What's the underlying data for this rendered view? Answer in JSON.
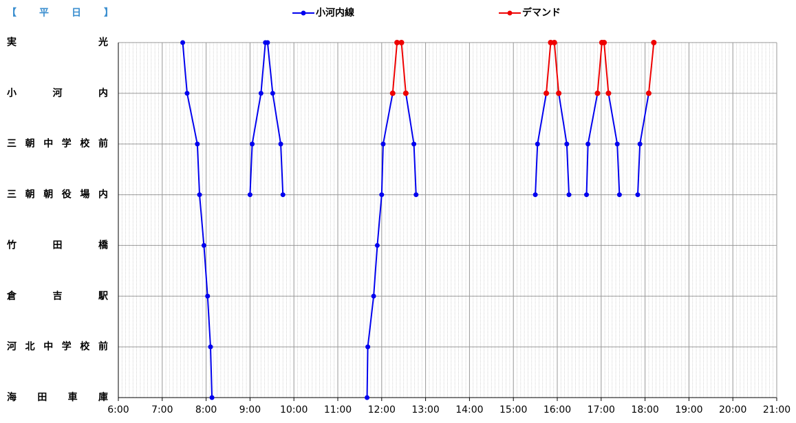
{
  "chart_data": {
    "type": "line",
    "title": "【平日】",
    "xlim": [
      360,
      1260
    ],
    "xticks": [
      {
        "value": 360,
        "label": "6:00"
      },
      {
        "value": 420,
        "label": "7:00"
      },
      {
        "value": 480,
        "label": "8:00"
      },
      {
        "value": 540,
        "label": "9:00"
      },
      {
        "value": 600,
        "label": "10:00"
      },
      {
        "value": 660,
        "label": "11:00"
      },
      {
        "value": 720,
        "label": "12:00"
      },
      {
        "value": 780,
        "label": "13:00"
      },
      {
        "value": 840,
        "label": "14:00"
      },
      {
        "value": 900,
        "label": "15:00"
      },
      {
        "value": 960,
        "label": "16:00"
      },
      {
        "value": 1020,
        "label": "17:00"
      },
      {
        "value": 1080,
        "label": "18:00"
      },
      {
        "value": 1140,
        "label": "19:00"
      },
      {
        "value": 1200,
        "label": "20:00"
      },
      {
        "value": 1260,
        "label": "21:00"
      }
    ],
    "minor_grid_step": 5,
    "ylim": [
      0,
      7
    ],
    "yticks": [
      {
        "value": 7,
        "label": "実光"
      },
      {
        "value": 6,
        "label": "小河内"
      },
      {
        "value": 5,
        "label": "三朝中学校前"
      },
      {
        "value": 4,
        "label": "三朝朝役場内"
      },
      {
        "value": 3,
        "label": "竹田橋"
      },
      {
        "value": 2,
        "label": "倉吉駅"
      },
      {
        "value": 1,
        "label": "河北中学校前"
      },
      {
        "value": 0,
        "label": "海田車庫"
      }
    ],
    "grid": true,
    "series": [
      {
        "name": "小河内線",
        "color": "#0000ee",
        "x": [
          448,
          454,
          468,
          471,
          477,
          482,
          486,
          488,
          null,
          540,
          543,
          555,
          561,
          564,
          571,
          582,
          585,
          null,
          700,
          701,
          709,
          714,
          720,
          722,
          735,
          null,
          753,
          764,
          767,
          null,
          930,
          933,
          945,
          null,
          962,
          973,
          976,
          null,
          1000,
          1002,
          1015,
          null,
          1030,
          1042,
          1045,
          null,
          1070,
          1073,
          1085
        ],
        "values": [
          7,
          6,
          5,
          4,
          3,
          2,
          1,
          0,
          null,
          4,
          5,
          6,
          7,
          7,
          6,
          5,
          4,
          null,
          0,
          1,
          2,
          3,
          4,
          5,
          6,
          null,
          6,
          5,
          4,
          null,
          4,
          5,
          6,
          null,
          6,
          5,
          4,
          null,
          4,
          5,
          6,
          null,
          6,
          5,
          4,
          null,
          4,
          5,
          6
        ]
      },
      {
        "name": "デマンド",
        "color": "#ee0000",
        "x": [
          735,
          741,
          747,
          753,
          null,
          945,
          951,
          956,
          962,
          null,
          1015,
          1021,
          1024,
          1030,
          null,
          1085,
          1092
        ],
        "values": [
          6,
          7,
          7,
          6,
          null,
          6,
          7,
          7,
          6,
          null,
          6,
          7,
          7,
          6,
          null,
          6,
          7
        ]
      }
    ]
  }
}
